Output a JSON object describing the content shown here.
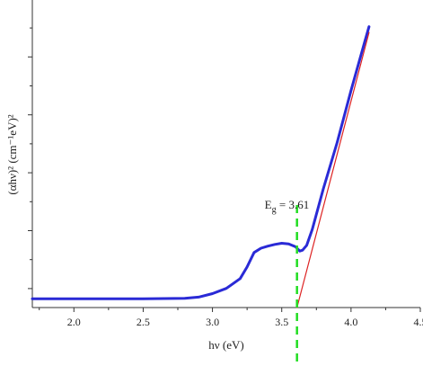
{
  "chart_data": {
    "type": "line",
    "xlabel": "hν (eV)",
    "ylabel": "(αhν)² (cm⁻¹eV)²",
    "xlim": [
      1.7,
      4.5
    ],
    "ylim": [
      0,
      1
    ],
    "xticks": [
      2.0,
      2.5,
      3.0,
      3.5,
      4.0,
      4.5
    ],
    "xtick_labels": [
      "2.0",
      "2.5",
      "3.0",
      "3.5",
      "4.0",
      "4.5"
    ],
    "y_minor_tick_count": 10,
    "y_major_ticks": [
      0.1,
      0.3,
      0.5,
      0.7,
      0.9
    ],
    "series": [
      {
        "role": "absorption",
        "color": "#2a2ad6",
        "x": [
          1.7,
          2.0,
          2.5,
          2.8,
          2.9,
          3.0,
          3.1,
          3.2,
          3.25,
          3.3,
          3.35,
          3.4,
          3.45,
          3.5,
          3.55,
          3.6,
          3.63,
          3.65,
          3.68,
          3.72,
          3.8,
          3.9,
          4.0,
          4.1,
          4.13
        ],
        "y": [
          0.03,
          0.03,
          0.03,
          0.032,
          0.036,
          0.048,
          0.066,
          0.1,
          0.14,
          0.19,
          0.205,
          0.212,
          0.218,
          0.222,
          0.22,
          0.21,
          0.195,
          0.198,
          0.215,
          0.27,
          0.41,
          0.57,
          0.75,
          0.92,
          0.97
        ]
      },
      {
        "role": "linear-fit",
        "color": "#dd2222",
        "x": [
          3.61,
          4.13
        ],
        "y": [
          0.0,
          0.95
        ]
      }
    ],
    "annotations": [
      {
        "text_main": "E",
        "text_sub": "g",
        "text_rest": " = 3.61",
        "x": 3.61,
        "line_color": "#22dd22"
      }
    ]
  }
}
